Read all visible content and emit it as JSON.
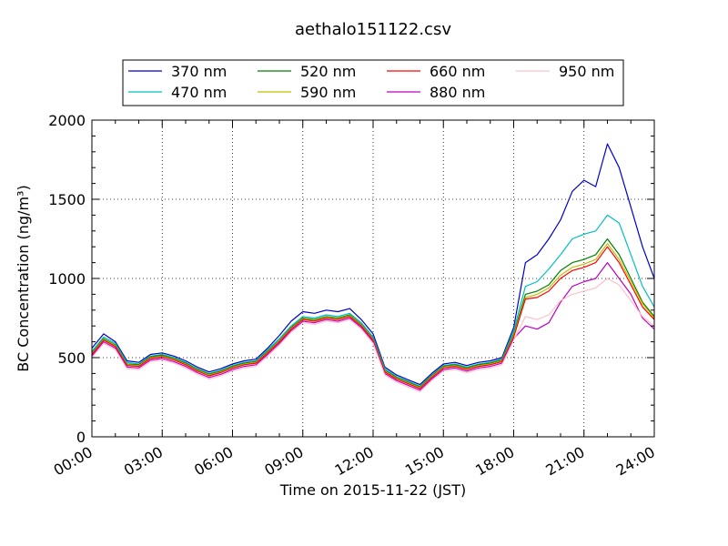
{
  "chart_data": {
    "type": "line",
    "title": "aethalo151122.csv",
    "xlabel": "Time on 2015-11-22 (JST)",
    "ylabel": "BC Concentration (ng/m³)",
    "x_ticks": [
      "00:00",
      "03:00",
      "06:00",
      "09:00",
      "12:00",
      "15:00",
      "18:00",
      "21:00",
      "24:00"
    ],
    "y_ticks": [
      "0",
      "500",
      "1000",
      "1500",
      "2000"
    ],
    "ylim": [
      0,
      2000
    ],
    "xlim_hours": [
      0,
      24
    ],
    "grid": true,
    "legend_position": "top",
    "x_hours": [
      0,
      0.5,
      1,
      1.5,
      2,
      2.5,
      3,
      3.5,
      4,
      4.5,
      5,
      5.5,
      6,
      6.5,
      7,
      7.5,
      8,
      8.5,
      9,
      9.5,
      10,
      10.5,
      11,
      11.5,
      12,
      12.5,
      13,
      13.5,
      14,
      14.5,
      15,
      15.5,
      16,
      16.5,
      17,
      17.5,
      18,
      18.5,
      19,
      19.5,
      20,
      20.5,
      21,
      21.5,
      22,
      22.5,
      23,
      23.5,
      24
    ],
    "series": [
      {
        "name": "370 nm",
        "color": "#0000cc",
        "values": [
          560,
          650,
          600,
          480,
          470,
          520,
          530,
          510,
          480,
          440,
          410,
          430,
          460,
          480,
          490,
          560,
          640,
          730,
          790,
          780,
          800,
          790,
          810,
          740,
          650,
          440,
          390,
          360,
          330,
          400,
          460,
          470,
          450,
          470,
          480,
          500,
          690,
          1100,
          1150,
          1250,
          1370,
          1550,
          1620,
          1580,
          1850,
          1700,
          1450,
          1200,
          1000
        ]
      },
      {
        "name": "470 nm",
        "color": "#00bfbf",
        "values": [
          540,
          630,
          590,
          470,
          460,
          510,
          520,
          500,
          470,
          430,
          400,
          420,
          450,
          470,
          480,
          550,
          620,
          700,
          760,
          750,
          770,
          760,
          780,
          720,
          630,
          430,
          380,
          350,
          320,
          390,
          450,
          460,
          440,
          460,
          470,
          490,
          670,
          950,
          980,
          1060,
          1150,
          1250,
          1280,
          1300,
          1400,
          1350,
          1150,
          950,
          820
        ]
      },
      {
        "name": "520 nm",
        "color": "#008000",
        "values": [
          530,
          620,
          580,
          460,
          455,
          505,
          515,
          495,
          465,
          425,
          395,
          415,
          445,
          465,
          475,
          540,
          610,
          690,
          750,
          740,
          760,
          750,
          770,
          710,
          620,
          420,
          375,
          345,
          315,
          385,
          445,
          455,
          435,
          455,
          465,
          485,
          650,
          900,
          920,
          960,
          1050,
          1100,
          1120,
          1150,
          1250,
          1150,
          1000,
          850,
          760
        ]
      },
      {
        "name": "590 nm",
        "color": "#bfbf00",
        "values": [
          525,
          615,
          575,
          455,
          450,
          500,
          510,
          490,
          460,
          420,
          390,
          410,
          440,
          460,
          470,
          535,
          605,
          685,
          745,
          735,
          755,
          745,
          765,
          705,
          615,
          415,
          370,
          340,
          310,
          380,
          440,
          450,
          430,
          450,
          460,
          480,
          640,
          880,
          900,
          940,
          1020,
          1070,
          1090,
          1120,
          1220,
          1120,
          980,
          840,
          750
        ]
      },
      {
        "name": "660 nm",
        "color": "#ff0000",
        "values": [
          520,
          610,
          570,
          450,
          445,
          495,
          505,
          485,
          455,
          415,
          385,
          405,
          435,
          455,
          465,
          530,
          600,
          680,
          740,
          730,
          750,
          740,
          760,
          700,
          610,
          410,
          365,
          335,
          305,
          375,
          435,
          445,
          425,
          445,
          455,
          475,
          630,
          870,
          880,
          920,
          1000,
          1050,
          1070,
          1100,
          1200,
          1100,
          960,
          820,
          740
        ]
      },
      {
        "name": "880 nm",
        "color": "#bf00bf",
        "values": [
          510,
          600,
          560,
          440,
          435,
          485,
          495,
          475,
          445,
          405,
          375,
          395,
          425,
          445,
          455,
          520,
          590,
          670,
          730,
          720,
          740,
          730,
          750,
          690,
          600,
          400,
          355,
          325,
          295,
          365,
          425,
          435,
          415,
          435,
          445,
          465,
          620,
          700,
          680,
          720,
          850,
          950,
          980,
          1000,
          1100,
          1000,
          900,
          750,
          680
        ]
      },
      {
        "name": "950 nm",
        "color": "#ffc0cb",
        "values": [
          500,
          590,
          550,
          430,
          425,
          475,
          485,
          465,
          435,
          395,
          365,
          385,
          415,
          435,
          445,
          510,
          580,
          660,
          720,
          710,
          730,
          720,
          740,
          680,
          590,
          390,
          345,
          315,
          285,
          355,
          415,
          425,
          405,
          425,
          435,
          455,
          610,
          760,
          740,
          770,
          860,
          900,
          920,
          940,
          1000,
          960,
          860,
          760,
          700
        ]
      }
    ]
  }
}
